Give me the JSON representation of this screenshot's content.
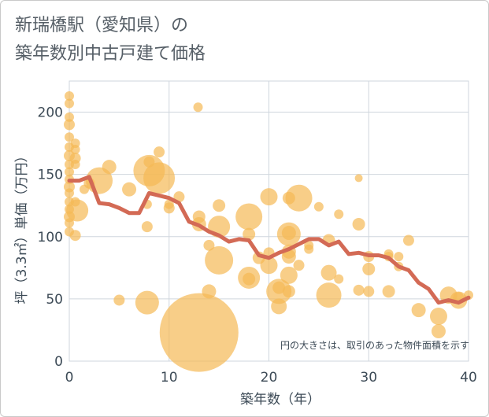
{
  "title_line1": "新瑞橋駅（愛知県）の",
  "title_line2": "築年数別中古戸建て価格",
  "chart_data": {
    "type": "scatter",
    "xlabel": "築年数（年）",
    "ylabel": "坪（3.3㎡）単価（万円）",
    "xlim": [
      0,
      40
    ],
    "ylim": [
      0,
      225
    ],
    "x_ticks": [
      0,
      10,
      20,
      30,
      40
    ],
    "y_ticks": [
      0,
      50,
      100,
      150,
      200
    ],
    "grid": true,
    "annotation": "円の大きさは、取引のあった物件面積を示す",
    "colors": {
      "bubble": "#f5b955",
      "line": "#d36a55"
    },
    "bubbles": [
      {
        "x": 0,
        "y": 213,
        "s": 6
      },
      {
        "x": 0,
        "y": 207,
        "s": 6
      },
      {
        "x": 0,
        "y": 196,
        "s": 6
      },
      {
        "x": 0,
        "y": 190,
        "s": 7
      },
      {
        "x": 0,
        "y": 180,
        "s": 6
      },
      {
        "x": 0,
        "y": 172,
        "s": 6
      },
      {
        "x": 0,
        "y": 165,
        "s": 7
      },
      {
        "x": 0,
        "y": 158,
        "s": 6
      },
      {
        "x": 0,
        "y": 152,
        "s": 6
      },
      {
        "x": 0,
        "y": 146,
        "s": 6
      },
      {
        "x": 0,
        "y": 140,
        "s": 7
      },
      {
        "x": 0,
        "y": 135,
        "s": 6
      },
      {
        "x": 0,
        "y": 128,
        "s": 6
      },
      {
        "x": 0,
        "y": 122,
        "s": 6
      },
      {
        "x": 0,
        "y": 116,
        "s": 7
      },
      {
        "x": 0,
        "y": 111,
        "s": 6
      },
      {
        "x": 0,
        "y": 104,
        "s": 6
      },
      {
        "x": 0.6,
        "y": 175,
        "s": 6
      },
      {
        "x": 0.6,
        "y": 170,
        "s": 6
      },
      {
        "x": 0.6,
        "y": 163,
        "s": 7
      },
      {
        "x": 0.6,
        "y": 158,
        "s": 6
      },
      {
        "x": 0.6,
        "y": 128,
        "s": 6
      },
      {
        "x": 0.6,
        "y": 101,
        "s": 7
      },
      {
        "x": 0.8,
        "y": 121,
        "s": 14
      },
      {
        "x": 1.5,
        "y": 138,
        "s": 6
      },
      {
        "x": 2,
        "y": 143,
        "s": 7
      },
      {
        "x": 3,
        "y": 145,
        "s": 17
      },
      {
        "x": 4,
        "y": 156,
        "s": 9
      },
      {
        "x": 5,
        "y": 49,
        "s": 7
      },
      {
        "x": 6,
        "y": 138,
        "s": 9
      },
      {
        "x": 7.8,
        "y": 47,
        "s": 15
      },
      {
        "x": 7.8,
        "y": 108,
        "s": 7
      },
      {
        "x": 7.8,
        "y": 126,
        "s": 6
      },
      {
        "x": 8,
        "y": 160,
        "s": 7
      },
      {
        "x": 8,
        "y": 153,
        "s": 20
      },
      {
        "x": 9,
        "y": 147,
        "s": 20
      },
      {
        "x": 9,
        "y": 168,
        "s": 7
      },
      {
        "x": 10,
        "y": 123,
        "s": 7
      },
      {
        "x": 10,
        "y": 126,
        "s": 6
      },
      {
        "x": 11,
        "y": 132,
        "s": 7
      },
      {
        "x": 12.9,
        "y": 204,
        "s": 6
      },
      {
        "x": 13,
        "y": 23,
        "s": 50
      },
      {
        "x": 13,
        "y": 116,
        "s": 8
      },
      {
        "x": 13,
        "y": 110,
        "s": 9
      },
      {
        "x": 14,
        "y": 93,
        "s": 7
      },
      {
        "x": 14,
        "y": 56,
        "s": 9
      },
      {
        "x": 15,
        "y": 108,
        "s": 14
      },
      {
        "x": 15,
        "y": 125,
        "s": 8
      },
      {
        "x": 15,
        "y": 81,
        "s": 18
      },
      {
        "x": 18,
        "y": 116,
        "s": 17
      },
      {
        "x": 18,
        "y": 102,
        "s": 8
      },
      {
        "x": 18,
        "y": 66,
        "s": 8
      },
      {
        "x": 18,
        "y": 67,
        "s": 14
      },
      {
        "x": 19,
        "y": 83,
        "s": 8
      },
      {
        "x": 20,
        "y": 132,
        "s": 11
      },
      {
        "x": 20,
        "y": 77,
        "s": 11
      },
      {
        "x": 20,
        "y": 87,
        "s": 7
      },
      {
        "x": 21,
        "y": 59,
        "s": 8
      },
      {
        "x": 21,
        "y": 56,
        "s": 16
      },
      {
        "x": 21,
        "y": 44,
        "s": 10
      },
      {
        "x": 22,
        "y": 131,
        "s": 8
      },
      {
        "x": 22,
        "y": 102,
        "s": 15
      },
      {
        "x": 22,
        "y": 103,
        "s": 9
      },
      {
        "x": 22,
        "y": 88,
        "s": 9
      },
      {
        "x": 22,
        "y": 84,
        "s": 9
      },
      {
        "x": 22,
        "y": 69,
        "s": 11
      },
      {
        "x": 22,
        "y": 56,
        "s": 8
      },
      {
        "x": 23,
        "y": 131,
        "s": 17
      },
      {
        "x": 23,
        "y": 77,
        "s": 7
      },
      {
        "x": 24,
        "y": 93,
        "s": 6
      },
      {
        "x": 24,
        "y": 90,
        "s": 6
      },
      {
        "x": 25,
        "y": 124,
        "s": 6
      },
      {
        "x": 26,
        "y": 97,
        "s": 8
      },
      {
        "x": 26,
        "y": 71,
        "s": 10
      },
      {
        "x": 26,
        "y": 53,
        "s": 16
      },
      {
        "x": 27,
        "y": 118,
        "s": 6
      },
      {
        "x": 27,
        "y": 66,
        "s": 6
      },
      {
        "x": 29,
        "y": 147,
        "s": 5
      },
      {
        "x": 29,
        "y": 110,
        "s": 8
      },
      {
        "x": 29,
        "y": 57,
        "s": 7
      },
      {
        "x": 30,
        "y": 84,
        "s": 7
      },
      {
        "x": 30,
        "y": 74,
        "s": 8
      },
      {
        "x": 30,
        "y": 56,
        "s": 7
      },
      {
        "x": 32,
        "y": 86,
        "s": 6
      },
      {
        "x": 32,
        "y": 84,
        "s": 6
      },
      {
        "x": 32,
        "y": 56,
        "s": 8
      },
      {
        "x": 33,
        "y": 84,
        "s": 6
      },
      {
        "x": 33,
        "y": 76,
        "s": 6
      },
      {
        "x": 34,
        "y": 97,
        "s": 7
      },
      {
        "x": 35,
        "y": 41,
        "s": 9
      },
      {
        "x": 37,
        "y": 36,
        "s": 11
      },
      {
        "x": 37,
        "y": 24,
        "s": 9
      },
      {
        "x": 38,
        "y": 53,
        "s": 11
      },
      {
        "x": 39,
        "y": 49,
        "s": 11
      },
      {
        "x": 39,
        "y": 51,
        "s": 7
      },
      {
        "x": 40,
        "y": 53,
        "s": 6
      }
    ],
    "trend_line": {
      "x": [
        0,
        1,
        2,
        3,
        4,
        5,
        6,
        7,
        8,
        9,
        10,
        11,
        12,
        13,
        14,
        15,
        16,
        17,
        18,
        19,
        20,
        21,
        22,
        23,
        24,
        25,
        26,
        27,
        28,
        29,
        30,
        31,
        32,
        33,
        34,
        35,
        36,
        37,
        38,
        39,
        40
      ],
      "y": [
        145,
        145,
        148,
        127,
        126,
        123,
        119,
        119,
        135,
        133,
        131,
        127,
        112,
        109,
        104,
        101,
        96,
        98,
        97,
        85,
        83,
        87,
        90,
        94,
        98,
        98,
        93,
        96,
        86,
        87,
        85,
        85,
        83,
        76,
        73,
        63,
        58,
        47,
        49,
        47,
        51
      ]
    }
  }
}
